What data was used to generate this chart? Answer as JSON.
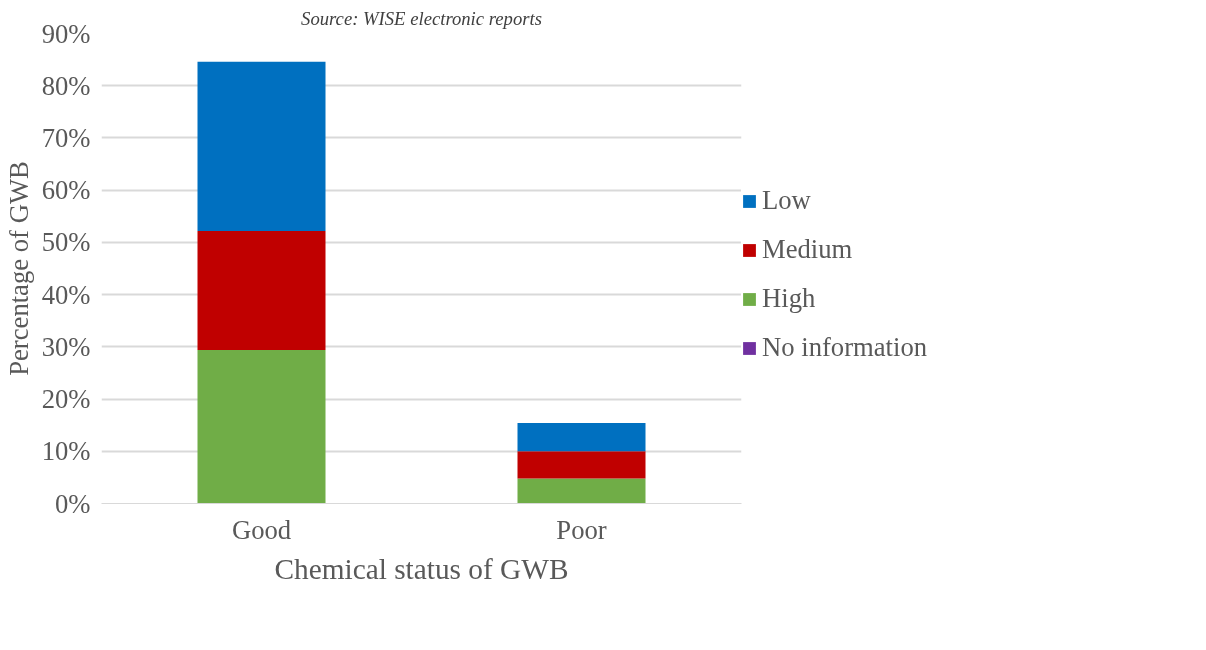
{
  "chart_data": {
    "type": "bar",
    "stacked": true,
    "categories": [
      "Good",
      "Poor"
    ],
    "xlabel": "Chemical status of GWB",
    "ylabel": "Percentage of GWB",
    "annotations": [
      "Source: WISE electronic reports"
    ],
    "series": [
      {
        "name": "High",
        "color": "#70ad47",
        "values": [
          29.4,
          4.8
        ]
      },
      {
        "name": "Medium",
        "color": "#c00000",
        "values": [
          22.8,
          5.2
        ]
      },
      {
        "name": "Low",
        "color": "#0070c0",
        "values": [
          32.4,
          5.4
        ]
      },
      {
        "name": "No information",
        "color": "#7030a0",
        "values": [
          0,
          0
        ]
      }
    ],
    "ylim": [
      0,
      90
    ],
    "yticks": [
      {
        "value": 0,
        "label": "0%"
      },
      {
        "value": 10,
        "label": "10%"
      },
      {
        "value": 20,
        "label": "20%"
      },
      {
        "value": 30,
        "label": "30%"
      },
      {
        "value": 40,
        "label": "40%"
      },
      {
        "value": 50,
        "label": "50%"
      },
      {
        "value": 60,
        "label": "60%"
      },
      {
        "value": 70,
        "label": "70%"
      },
      {
        "value": 80,
        "label": "80%"
      },
      {
        "value": 90,
        "label": "90%"
      }
    ],
    "grid": "y",
    "legend": "right"
  }
}
